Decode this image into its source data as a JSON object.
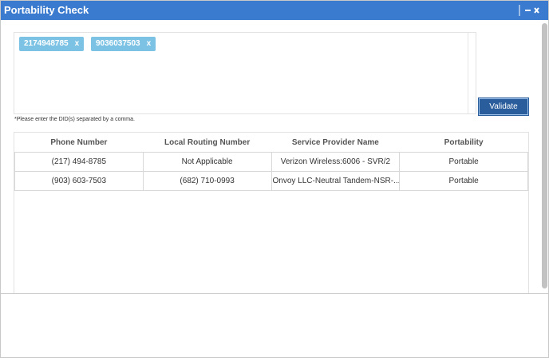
{
  "window": {
    "title": "Portability Check"
  },
  "input": {
    "tags": [
      {
        "text": "2174948785",
        "remove": "x"
      },
      {
        "text": "9036037503",
        "remove": "x"
      }
    ],
    "hint": "*Please enter the DID(s) separated by a comma."
  },
  "button": {
    "label": "Validate"
  },
  "table": {
    "headers": [
      "Phone Number",
      "Local Routing Number",
      "Service Provider Name",
      "Portability"
    ],
    "rows": [
      [
        "(217) 494-8785",
        "Not Applicable",
        "Verizon Wireless:6006 - SVR/2",
        "Portable"
      ],
      [
        "(903) 603-7503",
        "(682) 710-0993",
        "Onvoy LLC-Neutral Tandem-NSR-...",
        "Portable"
      ]
    ]
  }
}
